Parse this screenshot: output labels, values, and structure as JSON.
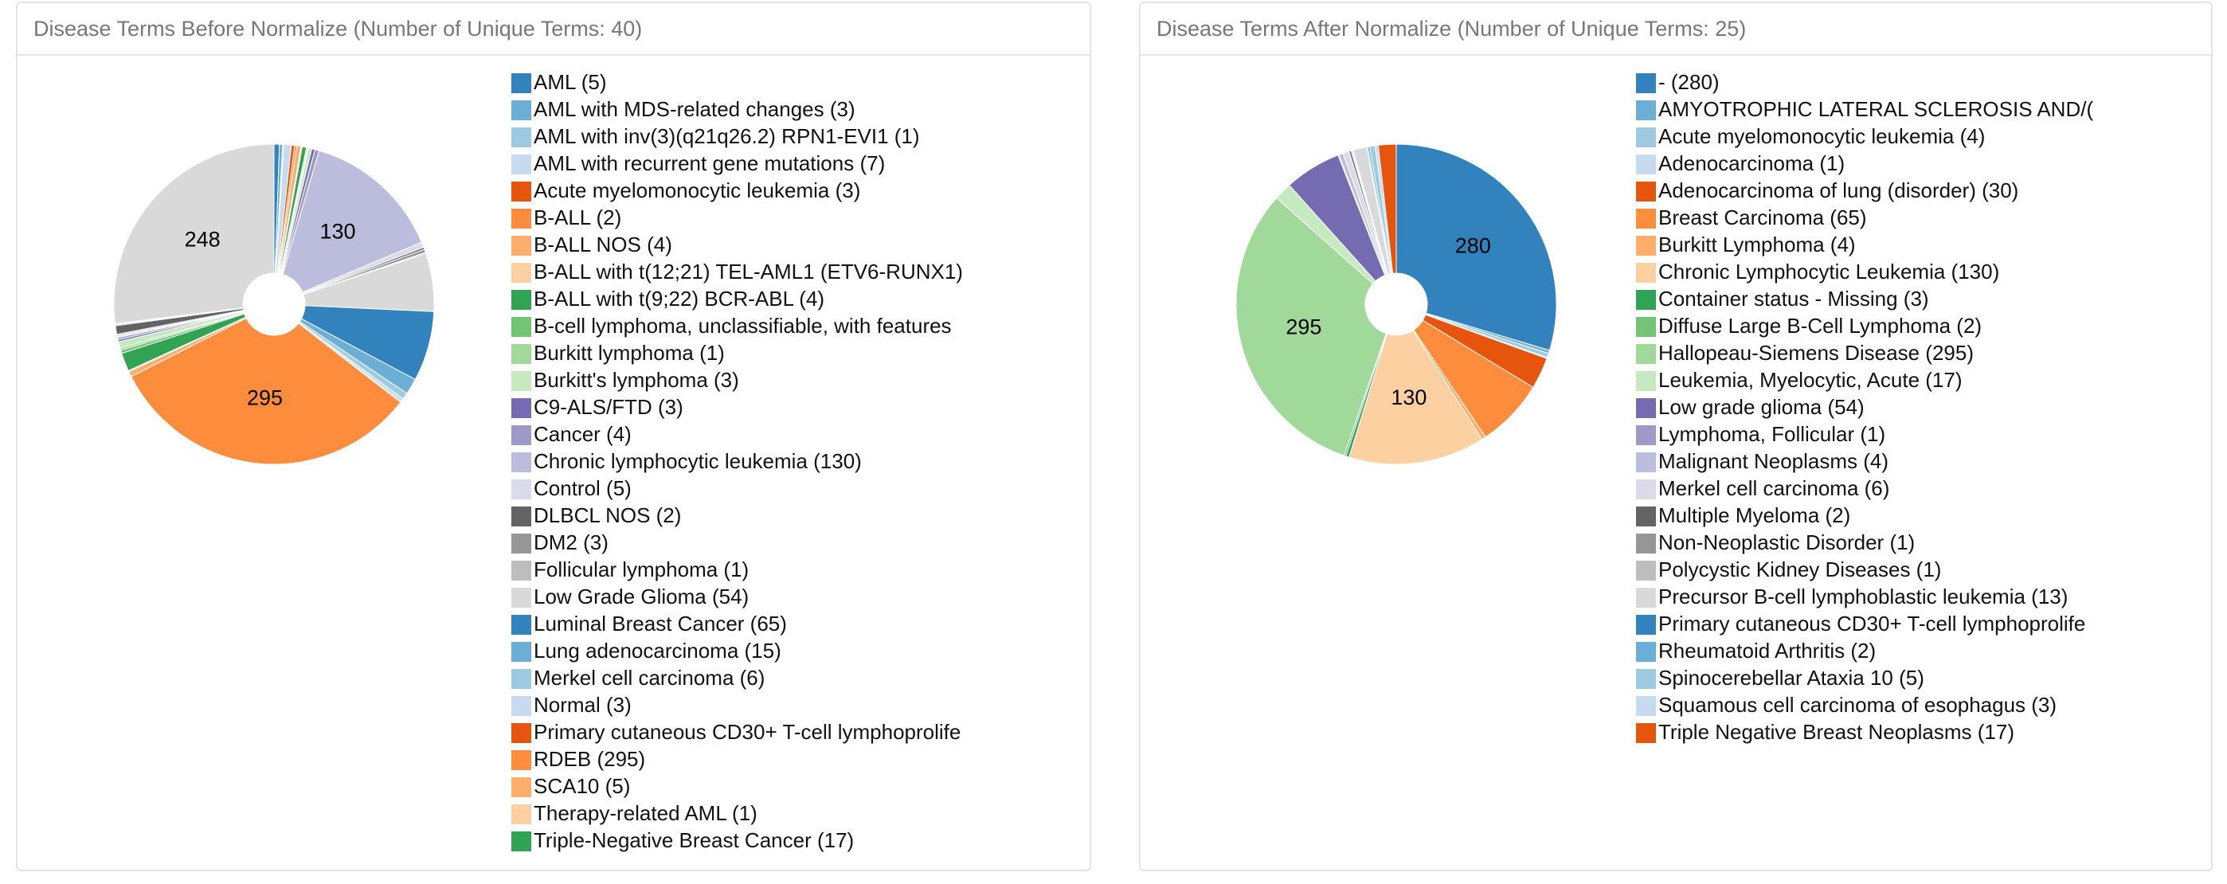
{
  "chart_data": [
    {
      "type": "pie",
      "title": "Disease Terms Before Normalize (Number of Unique Terms: 40)",
      "categories": [
        "AML (5)",
        "AML with MDS-related changes (3)",
        "AML with inv(3)(q21q26.2) RPN1-EVI1 (1)",
        "AML with recurrent gene mutations (7)",
        "Acute myelomonocytic leukemia (3)",
        "B-ALL (2)",
        "B-ALL NOS (4)",
        "B-ALL with t(12;21) TEL-AML1 (ETV6-RUNX1)",
        "B-ALL with t(9;22) BCR-ABL (4)",
        "B-cell lymphoma, unclassifiable, with features",
        "Burkitt lymphoma (1)",
        "Burkitt's lymphoma (3)",
        "C9-ALS/FTD (3)",
        "Cancer (4)",
        "Chronic lymphocytic leukemia (130)",
        "Control (5)",
        "DLBCL NOS (2)",
        "DM2 (3)",
        "Follicular lymphoma (1)",
        "Low Grade Glioma (54)",
        "Luminal Breast Cancer (65)",
        "Lung adenocarcinoma (15)",
        "Merkel cell carcinoma (6)",
        "Normal (3)",
        "Primary cutaneous CD30+ T-cell lymphoprolife",
        "RDEB (295)",
        "SCA10 (5)",
        "Therapy-related AML (1)",
        "Triple-Negative Breast Cancer (17)",
        null,
        null,
        null,
        null,
        null,
        null,
        null,
        null,
        null,
        null,
        null
      ],
      "values": [
        5,
        3,
        1,
        7,
        3,
        2,
        4,
        1,
        4,
        1,
        1,
        3,
        3,
        4,
        130,
        5,
        2,
        3,
        1,
        54,
        65,
        15,
        6,
        3,
        1,
        295,
        5,
        1,
        17,
        3,
        2,
        6,
        2,
        2,
        1,
        2,
        8,
        1,
        1,
        248
      ],
      "colors": [
        "#3182bd",
        "#6baed6",
        "#9ecae1",
        "#c6dbef",
        "#e6550d",
        "#fd8d3c",
        "#fdae6b",
        "#fdd0a2",
        "#31a354",
        "#74c476",
        "#a1d99b",
        "#c7e9c0",
        "#756bb1",
        "#9e9ac8",
        "#bcbddc",
        "#dadaeb",
        "#636363",
        "#969696",
        "#bdbdbd",
        "#d9d9d9"
      ]
    },
    {
      "type": "pie",
      "title": "Disease Terms After Normalize (Number of Unique Terms: 25)",
      "categories": [
        "- (280)",
        "AMYOTROPHIC LATERAL SCLEROSIS AND/(",
        "Acute myelomonocytic leukemia (4)",
        "Adenocarcinoma (1)",
        "Adenocarcinoma of lung (disorder) (30)",
        "Breast Carcinoma (65)",
        "Burkitt Lymphoma (4)",
        "Chronic Lymphocytic Leukemia (130)",
        "Container status - Missing (3)",
        "Diffuse Large B-Cell Lymphoma (2)",
        "Hallopeau-Siemens Disease (295)",
        "Leukemia, Myelocytic, Acute (17)",
        "Low grade glioma (54)",
        "Lymphoma, Follicular (1)",
        "Malignant Neoplasms (4)",
        "Merkel cell carcinoma (6)",
        "Multiple Myeloma (2)",
        "Non-Neoplastic Disorder (1)",
        "Polycystic Kidney Diseases (1)",
        "Precursor B-cell lymphoblastic leukemia (13)",
        "Primary cutaneous CD30+ T-cell lymphoprolife",
        "Rheumatoid Arthritis (2)",
        "Spinocerebellar Ataxia 10 (5)",
        "Squamous cell carcinoma of esophagus (3)",
        "Triple Negative Breast Neoplasms (17)"
      ],
      "values": [
        280,
        3,
        4,
        1,
        30,
        65,
        4,
        130,
        3,
        2,
        295,
        17,
        54,
        1,
        4,
        6,
        2,
        1,
        1,
        13,
        1,
        2,
        5,
        3,
        17
      ],
      "colors": [
        "#3182bd",
        "#6baed6",
        "#9ecae1",
        "#c6dbef",
        "#e6550d",
        "#fd8d3c",
        "#fdae6b",
        "#fdd0a2",
        "#31a354",
        "#74c476",
        "#a1d99b",
        "#c7e9c0",
        "#756bb1",
        "#9e9ac8",
        "#bcbddc",
        "#dadaeb",
        "#636363",
        "#969696",
        "#bdbdbd",
        "#d9d9d9"
      ]
    }
  ]
}
